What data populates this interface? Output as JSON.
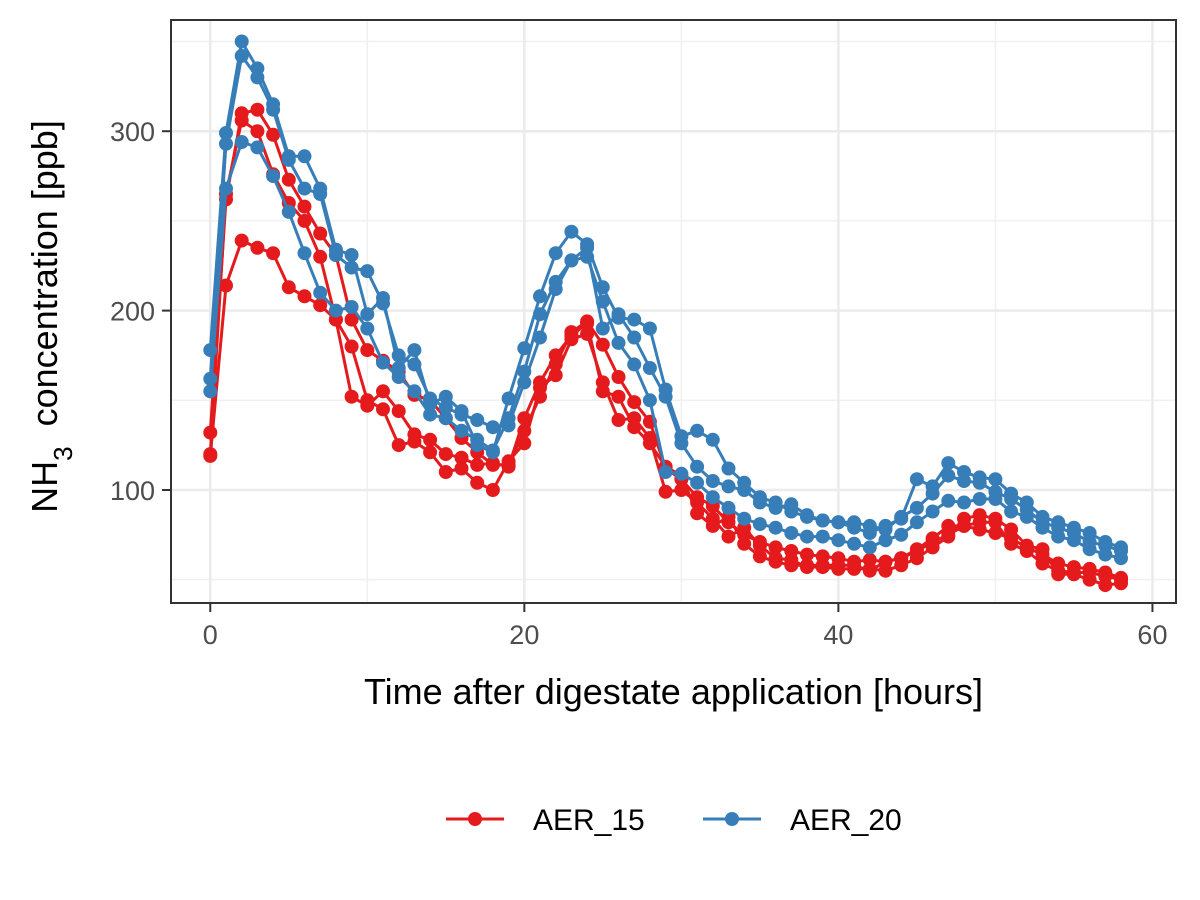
{
  "chart_data": {
    "type": "line",
    "xlabel": "Time after digestate application [hours]",
    "ylabel_main": "NH",
    "ylabel_sub": "3",
    "ylabel_rest": "concentration [ppb]",
    "xlim": [
      -2.5,
      61.5
    ],
    "ylim": [
      37,
      362
    ],
    "x_ticks": [
      0,
      20,
      40,
      60
    ],
    "x_tick_labels": [
      "0",
      "20",
      "40",
      "60"
    ],
    "y_ticks": [
      100,
      200,
      300
    ],
    "y_tick_labels": [
      "100",
      "200",
      "300"
    ],
    "grid": true,
    "legend_position": "bottom",
    "legend": [
      {
        "label": "AER_15",
        "color": "#E41A1C"
      },
      {
        "label": "AER_20",
        "color": "#377EB8"
      }
    ],
    "series": [
      {
        "group": "AER_15",
        "color": "#E41A1C",
        "x": [
          0,
          1,
          2,
          3,
          4,
          5,
          6,
          7,
          8,
          9,
          10,
          11,
          12,
          13,
          14,
          15,
          16,
          17,
          18,
          19,
          20,
          21,
          22,
          23,
          24,
          25,
          26,
          27,
          28,
          29,
          30,
          31,
          32,
          33,
          34,
          35,
          36,
          37,
          38,
          39,
          40,
          41,
          42,
          43,
          44,
          45,
          46,
          47,
          48,
          49,
          50,
          51,
          52,
          53,
          54,
          55,
          56,
          57,
          58
        ],
        "y": [
          132,
          262,
          310,
          312,
          298,
          273,
          258,
          243,
          231,
          195,
          178,
          172,
          166,
          153,
          150,
          140,
          129,
          121,
          114,
          114,
          133,
          152,
          170,
          188,
          194,
          181,
          163,
          149,
          138,
          112,
          106,
          96,
          91,
          82,
          75,
          71,
          68,
          66,
          64,
          63,
          62,
          60,
          61,
          60,
          62,
          66,
          71,
          75,
          80,
          78,
          76,
          73,
          68,
          64,
          59,
          57,
          56,
          54,
          51
        ]
      },
      {
        "group": "AER_15",
        "color": "#E41A1C",
        "x": [
          0,
          1,
          2,
          3,
          4,
          5,
          6,
          7,
          8,
          9,
          10,
          11,
          12,
          13,
          14,
          15,
          16,
          17,
          18,
          19,
          20,
          21,
          22,
          23,
          24,
          25,
          26,
          27,
          28,
          29,
          30,
          31,
          32,
          33,
          34,
          35,
          36,
          37,
          38,
          39,
          40,
          41,
          42,
          43,
          44,
          45,
          46,
          47,
          48,
          49,
          50,
          51,
          52,
          53,
          54,
          55,
          56,
          57,
          58
        ],
        "y": [
          119,
          214,
          239,
          235,
          232,
          213,
          208,
          203,
          195,
          180,
          150,
          145,
          125,
          127,
          121,
          110,
          112,
          104,
          100,
          116,
          126,
          157,
          164,
          184,
          187,
          160,
          139,
          140,
          129,
          99,
          100,
          93,
          84,
          74,
          79,
          69,
          62,
          61,
          57,
          57,
          56,
          56,
          56,
          55,
          58,
          62,
          68,
          74,
          84,
          86,
          84,
          78,
          69,
          67,
          53,
          53,
          50,
          47,
          48
        ]
      },
      {
        "group": "AER_15",
        "color": "#E41A1C",
        "x": [
          0,
          1,
          2,
          3,
          4,
          5,
          6,
          7,
          8,
          9,
          10,
          11,
          12,
          13,
          14,
          15,
          16,
          17,
          18,
          19,
          20,
          21,
          22,
          23,
          24,
          25,
          26,
          27,
          28,
          29,
          30,
          31,
          32,
          33,
          34,
          35,
          36,
          37,
          38,
          39,
          40,
          41,
          42,
          43,
          44,
          45,
          46,
          47,
          48,
          49,
          50,
          51,
          52,
          53,
          54,
          55,
          56,
          57,
          58
        ],
        "y": [
          120,
          265,
          306,
          300,
          276,
          260,
          250,
          230,
          195,
          152,
          147,
          155,
          144,
          131,
          128,
          120,
          118,
          114,
          115,
          113,
          140,
          160,
          175,
          186,
          193,
          155,
          152,
          135,
          126,
          113,
          108,
          87,
          80,
          85,
          70,
          63,
          60,
          58,
          58,
          58,
          58,
          58,
          55,
          60,
          62,
          67,
          73,
          80,
          80,
          82,
          82,
          70,
          66,
          59,
          55,
          54,
          54,
          52,
          50
        ]
      },
      {
        "group": "AER_20",
        "color": "#377EB8",
        "x": [
          0,
          1,
          2,
          3,
          4,
          5,
          6,
          7,
          8,
          9,
          10,
          11,
          12,
          13,
          14,
          15,
          16,
          17,
          18,
          19,
          20,
          21,
          22,
          23,
          24,
          25,
          26,
          27,
          28,
          29,
          30,
          31,
          32,
          33,
          34,
          35,
          36,
          37,
          38,
          39,
          40,
          41,
          42,
          43,
          44,
          45,
          46,
          47,
          48,
          49,
          50,
          51,
          52,
          53,
          54,
          55,
          56,
          57,
          58
        ],
        "y": [
          178,
          299,
          350,
          335,
          315,
          286,
          286,
          268,
          234,
          231,
          198,
          207,
          168,
          178,
          148,
          152,
          144,
          125,
          121,
          151,
          179,
          208,
          232,
          244,
          237,
          213,
          196,
          195,
          190,
          156,
          130,
          133,
          128,
          112,
          104,
          96,
          93,
          88,
          85,
          83,
          82,
          79,
          76,
          80,
          84,
          106,
          102,
          115,
          110,
          107,
          106,
          98,
          93,
          85,
          82,
          79,
          76,
          71,
          68
        ]
      },
      {
        "group": "AER_20",
        "color": "#377EB8",
        "x": [
          0,
          1,
          2,
          3,
          4,
          5,
          6,
          7,
          8,
          9,
          10,
          11,
          12,
          13,
          14,
          15,
          16,
          17,
          18,
          19,
          20,
          21,
          22,
          23,
          24,
          25,
          26,
          27,
          28,
          29,
          30,
          31,
          32,
          33,
          34,
          35,
          36,
          37,
          38,
          39,
          40,
          41,
          42,
          43,
          44,
          45,
          46,
          47,
          48,
          49,
          50,
          51,
          52,
          53,
          54,
          55,
          56,
          57,
          58
        ],
        "y": [
          162,
          293,
          342,
          330,
          312,
          284,
          268,
          265,
          231,
          224,
          222,
          204,
          175,
          170,
          151,
          146,
          142,
          139,
          135,
          136,
          160,
          185,
          212,
          228,
          235,
          190,
          198,
          185,
          168,
          152,
          126,
          113,
          105,
          102,
          100,
          93,
          90,
          92,
          86,
          83,
          82,
          82,
          80,
          78,
          85,
          90,
          98,
          108,
          105,
          104,
          99,
          95,
          89,
          82,
          79,
          76,
          71,
          69,
          66
        ]
      },
      {
        "group": "AER_20",
        "color": "#377EB8",
        "x": [
          0,
          1,
          2,
          3,
          4,
          5,
          6,
          7,
          8,
          9,
          10,
          11,
          12,
          13,
          14,
          15,
          16,
          17,
          18,
          19,
          20,
          21,
          22,
          23,
          24,
          25,
          26,
          27,
          28,
          29,
          30,
          31,
          32,
          33,
          34,
          35,
          36,
          37,
          38,
          39,
          40,
          41,
          42,
          43,
          44,
          45,
          46,
          47,
          48,
          49,
          50,
          51,
          52,
          53,
          54,
          55,
          56,
          57,
          58
        ],
        "y": [
          155,
          268,
          294,
          291,
          275,
          255,
          232,
          210,
          200,
          202,
          190,
          171,
          163,
          155,
          142,
          140,
          133,
          128,
          122,
          140,
          166,
          198,
          216,
          228,
          230,
          205,
          182,
          170,
          150,
          110,
          109,
          104,
          96,
          90,
          84,
          81,
          79,
          76,
          74,
          74,
          72,
          70,
          68,
          72,
          75,
          82,
          88,
          94,
          93,
          95,
          95,
          88,
          85,
          79,
          74,
          72,
          67,
          64,
          62
        ]
      }
    ]
  }
}
